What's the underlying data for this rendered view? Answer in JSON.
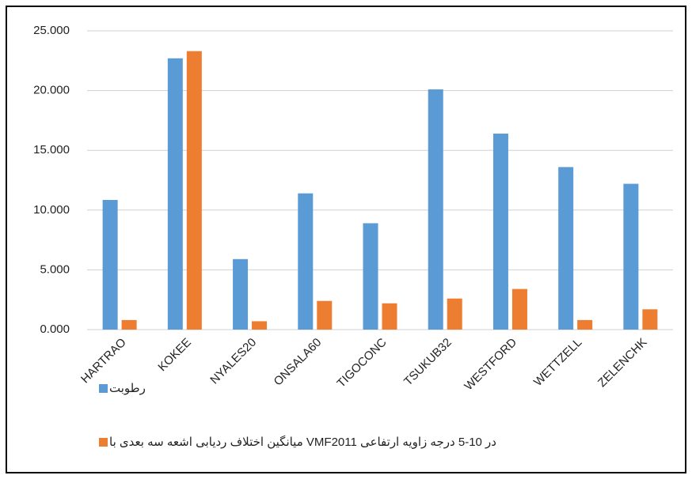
{
  "chart_data": {
    "type": "bar",
    "categories": [
      "HARTRAO",
      "KOKEE",
      "NYALES20",
      "ONSALA60",
      "TIGOCONC",
      "TSUKUB32",
      "WESTFORD",
      "WETTZELL",
      "ZELENCHK"
    ],
    "series": [
      {
        "name": "رطوبت",
        "color": "#5b9bd5",
        "values": [
          10.85,
          22.7,
          5.9,
          11.4,
          8.9,
          20.1,
          16.4,
          13.6,
          12.2
        ]
      },
      {
        "name": "میانگین اختلاف ردیابی اشعه سه بعدی با VMFدر 10-5 درجه زاویه ارتفاعی 2011",
        "color": "#ed7d31",
        "values": [
          0.8,
          23.3,
          0.7,
          2.4,
          2.2,
          2.6,
          3.4,
          0.8,
          1.7
        ]
      }
    ],
    "ylim": [
      0,
      25
    ],
    "yticks": [
      {
        "value": 0,
        "label": "0.000"
      },
      {
        "value": 5,
        "label": "5.000"
      },
      {
        "value": 10,
        "label": "10.000"
      },
      {
        "value": 15,
        "label": "15.000"
      },
      {
        "value": 20,
        "label": "20.000"
      },
      {
        "value": 25,
        "label": "25.000"
      }
    ],
    "grid": true
  }
}
